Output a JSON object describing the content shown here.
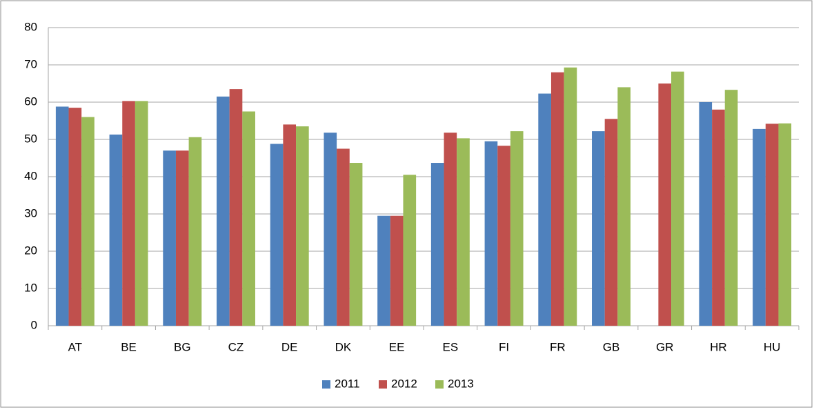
{
  "chart_data": {
    "type": "bar",
    "categories": [
      "AT",
      "BE",
      "BG",
      "CZ",
      "DE",
      "DK",
      "EE",
      "ES",
      "FI",
      "FR",
      "GB",
      "GR",
      "HR",
      "HU"
    ],
    "series": [
      {
        "name": "2011",
        "color": "#4f81bd",
        "values": [
          58.8,
          51.3,
          47,
          61.5,
          48.8,
          51.8,
          29.5,
          43.7,
          49.5,
          62.3,
          52.2,
          null,
          60,
          52.8
        ]
      },
      {
        "name": "2012",
        "color": "#c0504d",
        "values": [
          58.5,
          60.3,
          47,
          63.5,
          54,
          47.5,
          29.5,
          51.8,
          48.3,
          68,
          55.5,
          65,
          58,
          54.2
        ]
      },
      {
        "name": "2013",
        "color": "#9bbb59",
        "values": [
          56,
          60.3,
          50.6,
          57.5,
          53.5,
          43.7,
          40.5,
          50.3,
          52.2,
          69.3,
          64,
          68.2,
          63.3,
          54.3
        ]
      }
    ],
    "ylim": [
      0,
      80
    ],
    "yticks": [
      0,
      10,
      20,
      30,
      40,
      50,
      60,
      70,
      80
    ],
    "grid": true,
    "legend": "bottom"
  }
}
